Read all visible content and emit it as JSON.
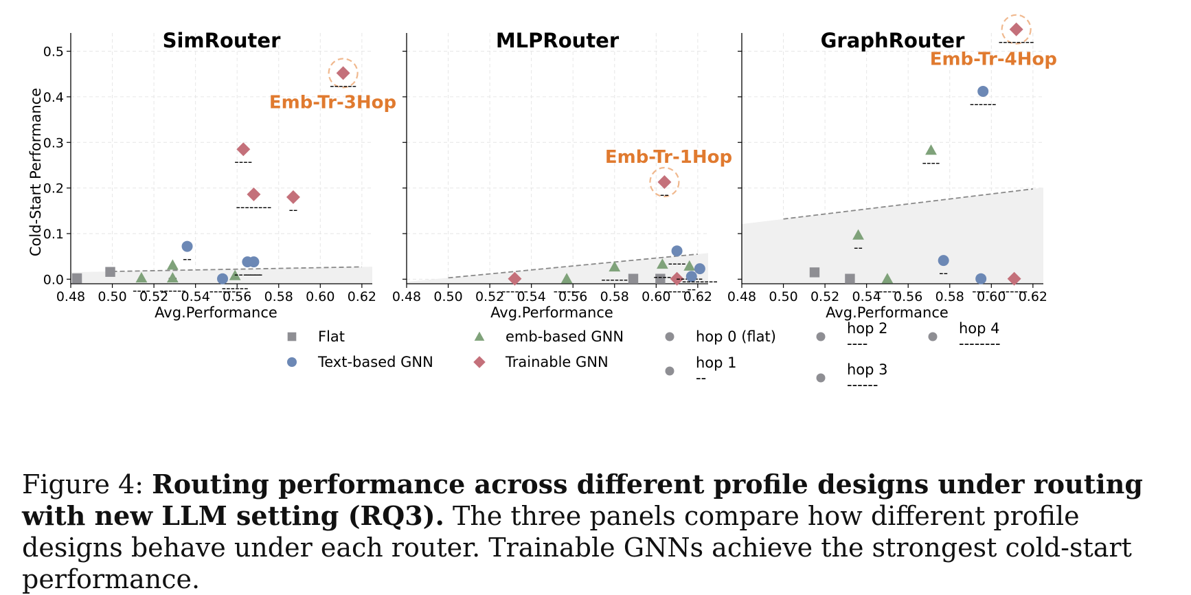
{
  "chart_data": [
    {
      "type": "scatter",
      "title": "SimRouter",
      "xlabel": "Avg.Performance",
      "ylabel": "Cold-Start Performance",
      "xlim": [
        0.48,
        0.625
      ],
      "ylim": [
        -0.01,
        0.54
      ],
      "xticks": [
        "0.48",
        "0.50",
        "0.52",
        "0.54",
        "0.56",
        "0.58",
        "0.60",
        "0.62"
      ],
      "yticks": [
        "0.0",
        "0.1",
        "0.2",
        "0.3",
        "0.4",
        "0.5"
      ],
      "baseline": {
        "x0": 0.5,
        "y0": 0.017,
        "x1": 0.62,
        "y1": 0.027
      },
      "points": [
        {
          "design": "Flat",
          "hop": 0,
          "x": 0.483,
          "y": 0.002
        },
        {
          "design": "Flat",
          "hop": 0,
          "x": 0.499,
          "y": 0.016
        },
        {
          "design": "emb-based GNN",
          "hop": 2,
          "x": 0.514,
          "y": 0.003
        },
        {
          "design": "emb-based GNN",
          "hop": 1,
          "x": 0.529,
          "y": 0.031
        },
        {
          "design": "emb-based GNN",
          "hop": 3,
          "x": 0.529,
          "y": 0.003
        },
        {
          "design": "emb-based GNN",
          "hop": 3,
          "x": 0.559,
          "y": 0.008
        },
        {
          "design": "Text-based GNN",
          "hop": 1,
          "x": 0.536,
          "y": 0.072
        },
        {
          "design": "Text-based GNN",
          "hop": 3,
          "x": 0.553,
          "y": 0.001
        },
        {
          "design": "Text-based GNN",
          "hop": 3,
          "x": 0.565,
          "y": 0.038
        },
        {
          "design": "Text-based GNN",
          "hop": 2,
          "x": 0.568,
          "y": 0.038
        },
        {
          "design": "Trainable GNN",
          "hop": 3,
          "x": 0.611,
          "y": 0.452,
          "highlight": true
        },
        {
          "design": "Trainable GNN",
          "hop": 2,
          "x": 0.563,
          "y": 0.285
        },
        {
          "design": "Trainable GNN",
          "hop": 4,
          "x": 0.568,
          "y": 0.186
        },
        {
          "design": "Trainable GNN",
          "hop": 1,
          "x": 0.587,
          "y": 0.18
        }
      ],
      "annotation": {
        "text": "Emb-Tr-3Hop",
        "x": 0.606,
        "y": 0.375
      }
    },
    {
      "type": "scatter",
      "title": "MLPRouter",
      "xlabel": "Avg.Performance",
      "xlim": [
        0.48,
        0.625
      ],
      "ylim": [
        -0.01,
        0.54
      ],
      "xticks": [
        "0.48",
        "0.50",
        "0.52",
        "0.54",
        "0.56",
        "0.58",
        "0.60",
        "0.62"
      ],
      "baseline": {
        "x0": 0.5,
        "y0": 0.003,
        "x1": 0.62,
        "y1": 0.055
      },
      "points": [
        {
          "design": "Trainable GNN",
          "hop": 3,
          "x": 0.532,
          "y": 0.001
        },
        {
          "design": "emb-based GNN",
          "hop": 3,
          "x": 0.557,
          "y": 0.001
        },
        {
          "design": "emb-based GNN",
          "hop": 3,
          "x": 0.58,
          "y": 0.027
        },
        {
          "design": "Flat",
          "hop": 0,
          "x": 0.589,
          "y": 0.001
        },
        {
          "design": "Flat",
          "hop": 0,
          "x": 0.602,
          "y": 0.001
        },
        {
          "design": "emb-based GNN",
          "hop": 2,
          "x": 0.603,
          "y": 0.033
        },
        {
          "design": "Trainable GNN",
          "hop": 1,
          "x": 0.604,
          "y": 0.213,
          "highlight": true
        },
        {
          "design": "Text-based GNN",
          "hop": 2,
          "x": 0.61,
          "y": 0.062
        },
        {
          "design": "Trainable GNN",
          "hop": 3,
          "x": 0.61,
          "y": 0.001
        },
        {
          "design": "emb-based GNN",
          "hop": 3,
          "x": 0.616,
          "y": 0.029
        },
        {
          "design": "Text-based GNN",
          "hop": 1,
          "x": 0.617,
          "y": 0.006
        },
        {
          "design": "Text-based GNN",
          "hop": 4,
          "x": 0.621,
          "y": 0.023
        }
      ],
      "annotation": {
        "text": "Emb-Tr-1Hop",
        "x": 0.606,
        "y": 0.255
      }
    },
    {
      "type": "scatter",
      "title": "GraphRouter",
      "xlabel": "Avg.Performance",
      "xlim": [
        0.48,
        0.625
      ],
      "ylim": [
        -0.01,
        0.54
      ],
      "xticks": [
        "0.48",
        "0.50",
        "0.52",
        "0.54",
        "0.56",
        "0.58",
        "0.60",
        "0.62"
      ],
      "baseline": {
        "x0": 0.5,
        "y0": 0.132,
        "x1": 0.62,
        "y1": 0.198
      },
      "points": [
        {
          "design": "Flat",
          "hop": 0,
          "x": 0.515,
          "y": 0.015
        },
        {
          "design": "Flat",
          "hop": 0,
          "x": 0.532,
          "y": 0.001
        },
        {
          "design": "emb-based GNN",
          "hop": 1,
          "x": 0.536,
          "y": 0.097
        },
        {
          "design": "emb-based GNN",
          "hop": 3,
          "x": 0.55,
          "y": 0.001
        },
        {
          "design": "emb-based GNN",
          "hop": 2,
          "x": 0.571,
          "y": 0.283
        },
        {
          "design": "Text-based GNN",
          "hop": 1,
          "x": 0.577,
          "y": 0.041
        },
        {
          "design": "Text-based GNN",
          "hop": 2,
          "x": 0.595,
          "y": 0.001
        },
        {
          "design": "Text-based GNN",
          "hop": 3,
          "x": 0.596,
          "y": 0.412
        },
        {
          "design": "Trainable GNN",
          "hop": 4,
          "x": 0.612,
          "y": 0.548,
          "highlight": true
        },
        {
          "design": "Trainable GNN",
          "hop": 3,
          "x": 0.611,
          "y": 0.001
        }
      ],
      "annotation": {
        "text": "Emb-Tr-4Hop",
        "x": 0.601,
        "y": 0.47
      }
    }
  ],
  "legend": {
    "designs": [
      {
        "label": "Flat",
        "marker": "square",
        "color": "#8e8e93"
      },
      {
        "label": "emb-based GNN",
        "marker": "triangle",
        "color": "#7fa27a"
      },
      {
        "label": "Text-based GNN",
        "marker": "circle",
        "color": "#6c88b5"
      },
      {
        "label": "Trainable GNN",
        "marker": "diamond",
        "color": "#c4707a"
      }
    ],
    "hops": [
      {
        "label": "hop 0 (flat)",
        "dash": ""
      },
      {
        "label": "hop 1",
        "dash": "--"
      },
      {
        "label": "hop 2",
        "dash": "----"
      },
      {
        "label": "hop 3",
        "dash": "------"
      },
      {
        "label": "hop 4",
        "dash": "--------"
      }
    ]
  },
  "caption": {
    "prefix": "Figure 4: ",
    "bold": "Routing performance across different profile designs under routing with new LLM setting (RQ3).",
    "rest": " The three panels compare how different profile designs behave under each router. Trainable GNNs achieve the strongest cold-start performance."
  }
}
